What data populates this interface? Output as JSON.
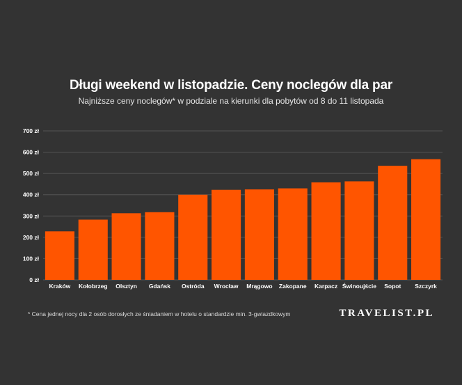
{
  "header": {
    "title_main": "Długi weekend w listopadzie. Ceny noclegów ",
    "title_highlight": "dla par",
    "subtitle": "Najniższe ceny noclegów* w podziale na kierunki dla pobytów od 8 do 11 listopada"
  },
  "footer": {
    "footnote": "* Cena jednej nocy dla 2 osób dorosłych ze śniadaniem w hotelu o standardzie min. 3-gwiazdkowym",
    "brand": "TRAVELIST.PL"
  },
  "colors": {
    "background": "#333333",
    "bar": "#ff5500",
    "grid": "#555555"
  },
  "chart_data": {
    "type": "bar",
    "title": "Długi weekend w listopadzie. Ceny noclegów dla par",
    "subtitle": "Najniższe ceny noclegów* w podziale na kierunki dla pobytów od 8 do 11 listopada",
    "categories": [
      "Kraków",
      "Kołobrzeg",
      "Olsztyn",
      "Gdańsk",
      "Ostróda",
      "Wrocław",
      "Mrągowo",
      "Zakopane",
      "Karpacz",
      "Świnoujście",
      "Sopot",
      "Szczyrk"
    ],
    "values": [
      228,
      283,
      313,
      318,
      400,
      423,
      425,
      430,
      458,
      463,
      536,
      567
    ],
    "yticks": [
      "0 zł",
      "100 zł",
      "200 zł",
      "300 zł",
      "400 zł",
      "500 zł",
      "600 zł",
      "700 zł"
    ],
    "ylim": [
      0,
      700
    ],
    "grid": true,
    "legend": "none"
  }
}
